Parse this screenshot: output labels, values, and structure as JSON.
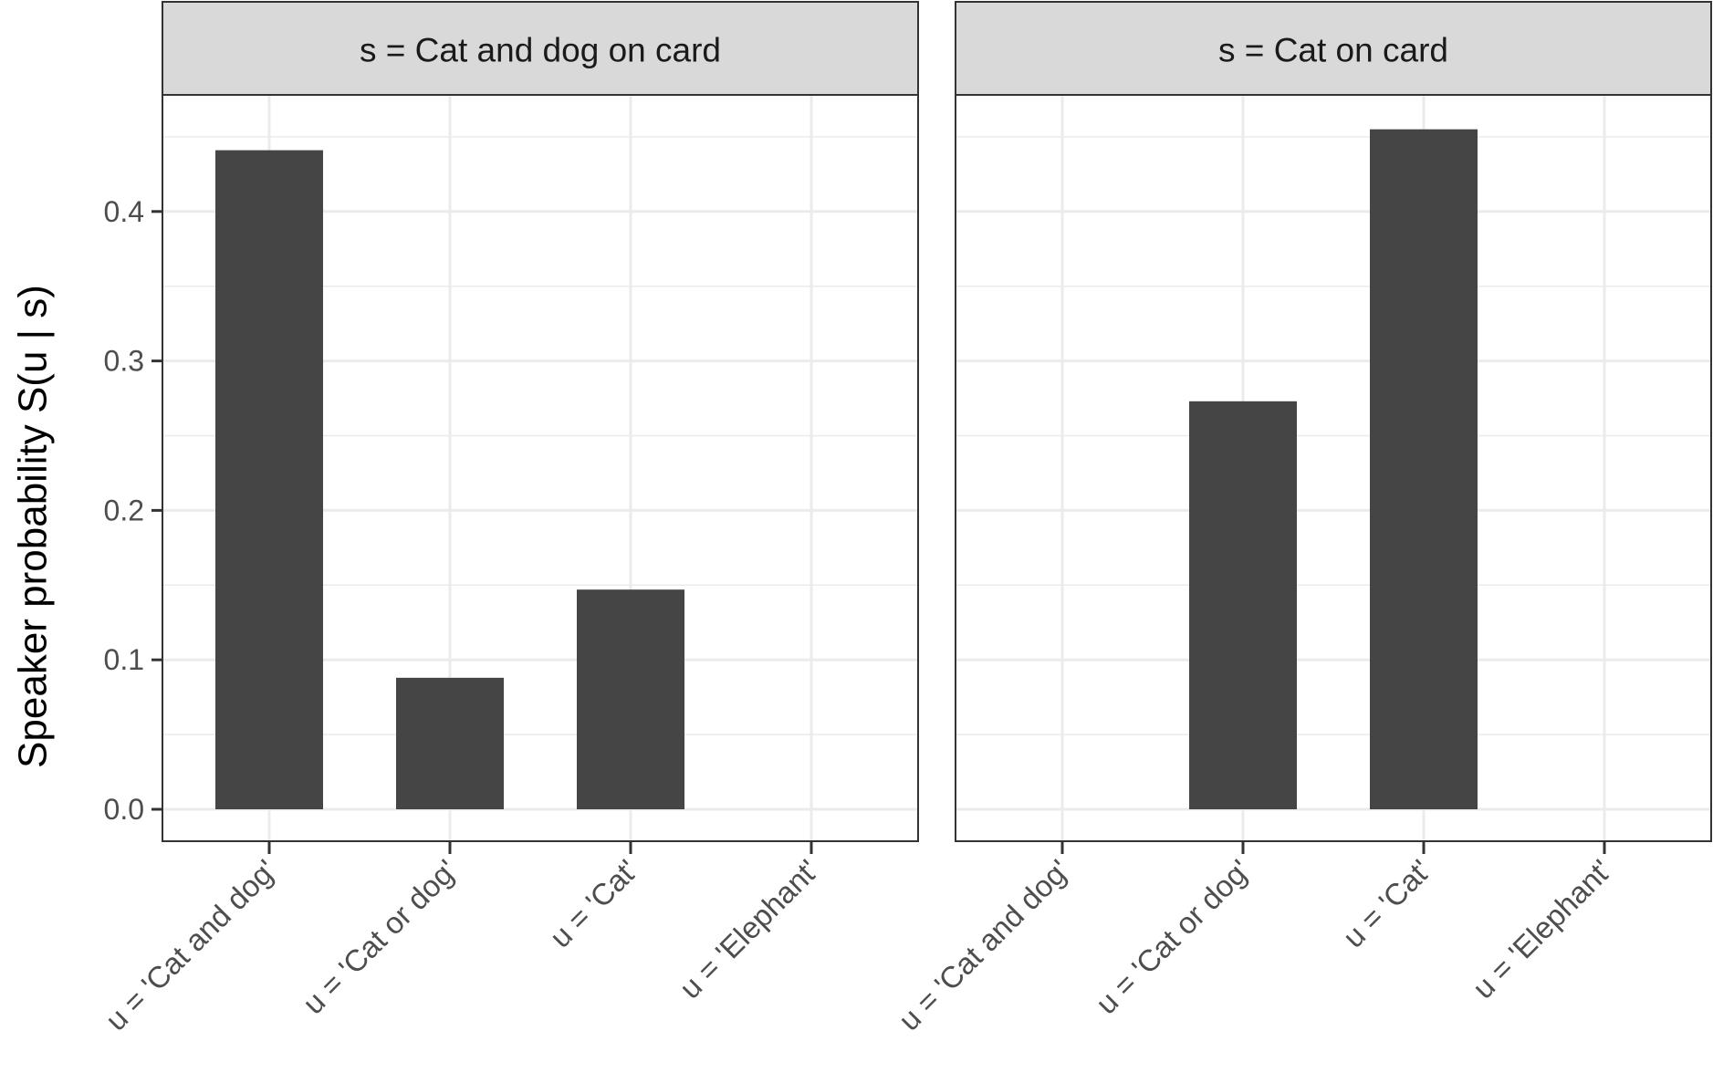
{
  "chart_data": {
    "type": "bar",
    "ylabel": "Speaker probability   S(u | s)",
    "ylim": [
      0,
      0.4
    ],
    "y_ticks": [
      "0.0",
      "0.1",
      "0.2",
      "0.3",
      "0.4"
    ],
    "grid": true,
    "categories": [
      "u = 'Cat and dog'",
      "u = 'Cat or dog'",
      "u = 'Cat'",
      "u = 'Elephant'"
    ],
    "facets": [
      {
        "strip": "s = Cat and dog on card",
        "values": [
          0.441,
          0.088,
          0.147,
          0.0
        ]
      },
      {
        "strip": "s = Cat on card",
        "values": [
          0.0,
          0.273,
          0.455,
          0.0
        ]
      }
    ],
    "colors": {
      "bar": "#454545",
      "strip_fill": "#d9d9d9",
      "grid": "#ebebeb",
      "panel_border": "#333333"
    }
  }
}
